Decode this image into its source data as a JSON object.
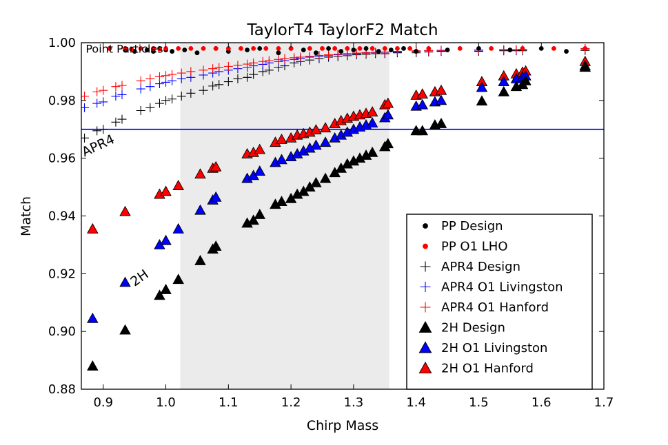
{
  "chart_data": {
    "type": "scatter",
    "title": "TaylorT4 TaylorF2 Match",
    "xlabel": "Chirp Mass",
    "ylabel": "Match",
    "xlim": [
      0.865,
      1.7
    ],
    "ylim": [
      0.88,
      1.0
    ],
    "xticks": [
      "0.9",
      "1.0",
      "1.1",
      "1.2",
      "1.3",
      "1.4",
      "1.5",
      "1.6",
      "1.7"
    ],
    "xtick_values": [
      0.9,
      1.0,
      1.1,
      1.2,
      1.3,
      1.4,
      1.5,
      1.6,
      1.7
    ],
    "yticks": [
      "0.88",
      "0.90",
      "0.92",
      "0.94",
      "0.96",
      "0.98",
      "1.00"
    ],
    "ytick_values": [
      0.88,
      0.9,
      0.92,
      0.94,
      0.96,
      0.98,
      1.0
    ],
    "shaded_region": {
      "x0": 1.023,
      "x1": 1.357,
      "color": "#ebebeb"
    },
    "threshold_line": {
      "y": 0.97,
      "color": "#0000ff"
    },
    "annotations": [
      {
        "text": "Point Particles",
        "x": 0.872,
        "y": 0.9965,
        "rotation": 0
      },
      {
        "text": "APR4",
        "x": 0.87,
        "y": 0.9605,
        "rotation": -25
      },
      {
        "text": "2H",
        "x": 0.95,
        "y": 0.9155,
        "rotation": -35
      }
    ],
    "legend": {
      "position": "lower-right",
      "entries": [
        {
          "label": "PP Design",
          "series": "pp_design"
        },
        {
          "label": "PP O1 LHO",
          "series": "pp_o1"
        },
        {
          "label": "APR4 Design",
          "series": "apr4_design"
        },
        {
          "label": "APR4 O1 Livingston",
          "series": "apr4_liv"
        },
        {
          "label": "APR4 O1 Hanford",
          "series": "apr4_han"
        },
        {
          "label": "2H Design",
          "series": "h2_design"
        },
        {
          "label": "2H O1 Livingston",
          "series": "h2_liv"
        },
        {
          "label": "2H O1 Hanford",
          "series": "h2_han"
        }
      ]
    },
    "series": [
      {
        "id": "pp_design",
        "name": "PP Design",
        "marker": "dot",
        "color": "#000000",
        "x": [
          0.91,
          0.935,
          0.95,
          0.97,
          0.98,
          0.99,
          1.0,
          1.01,
          1.03,
          1.05,
          1.08,
          1.1,
          1.13,
          1.15,
          1.18,
          1.2,
          1.22,
          1.24,
          1.26,
          1.28,
          1.3,
          1.32,
          1.34,
          1.36,
          1.38,
          1.4,
          1.45,
          1.5,
          1.55,
          1.6,
          1.64,
          1.67
        ],
        "y": [
          0.998,
          0.9975,
          0.997,
          0.9975,
          0.997,
          0.998,
          0.9975,
          0.997,
          0.9975,
          0.9965,
          0.998,
          0.997,
          0.9975,
          0.998,
          0.9965,
          0.998,
          0.9975,
          0.9965,
          0.998,
          0.997,
          0.9975,
          0.998,
          0.997,
          0.9975,
          0.998,
          0.997,
          0.9975,
          0.998,
          0.9975,
          0.998,
          0.997,
          0.991
        ]
      },
      {
        "id": "pp_o1",
        "name": "PP O1 LHO",
        "marker": "dot",
        "color": "#ff0000",
        "x": [
          0.91,
          0.935,
          0.945,
          0.96,
          0.98,
          0.99,
          1.0,
          1.02,
          1.04,
          1.06,
          1.08,
          1.1,
          1.12,
          1.14,
          1.16,
          1.18,
          1.2,
          1.23,
          1.25,
          1.27,
          1.29,
          1.31,
          1.33,
          1.35,
          1.37,
          1.39,
          1.42,
          1.47,
          1.52,
          1.57,
          1.62,
          1.67
        ],
        "y": [
          0.998,
          0.998,
          0.9978,
          0.998,
          0.998,
          0.9978,
          0.998,
          0.998,
          0.998,
          0.998,
          0.998,
          0.998,
          0.998,
          0.998,
          0.998,
          0.998,
          0.998,
          0.998,
          0.998,
          0.998,
          0.998,
          0.998,
          0.998,
          0.998,
          0.998,
          0.998,
          0.998,
          0.998,
          0.998,
          0.998,
          0.998,
          0.998
        ]
      },
      {
        "id": "apr4_design",
        "name": "APR4 Design",
        "marker": "plus",
        "color": "#000000",
        "x": [
          0.87,
          0.89,
          0.9,
          0.92,
          0.93,
          0.96,
          0.975,
          0.99,
          1.0,
          1.01,
          1.025,
          1.04,
          1.06,
          1.075,
          1.085,
          1.1,
          1.115,
          1.13,
          1.14,
          1.155,
          1.165,
          1.18,
          1.19,
          1.205,
          1.215,
          1.23,
          1.245,
          1.26,
          1.275,
          1.29,
          1.305,
          1.32,
          1.335,
          1.35,
          1.37,
          1.4,
          1.42,
          1.44,
          1.5,
          1.54,
          1.56,
          1.57,
          1.67
        ],
        "y": [
          0.967,
          0.9695,
          0.97,
          0.9725,
          0.9735,
          0.9765,
          0.9775,
          0.979,
          0.98,
          0.9805,
          0.9815,
          0.9825,
          0.9835,
          0.985,
          0.9855,
          0.9865,
          0.9875,
          0.988,
          0.989,
          0.99,
          0.9905,
          0.9915,
          0.992,
          0.993,
          0.9935,
          0.994,
          0.9945,
          0.995,
          0.9952,
          0.9955,
          0.9958,
          0.996,
          0.9962,
          0.9962,
          0.9965,
          0.9965,
          0.9968,
          0.997,
          0.997,
          0.9972,
          0.9972,
          0.9972,
          0.9973
        ]
      },
      {
        "id": "apr4_liv",
        "name": "APR4 O1 Livingston",
        "marker": "plus",
        "color": "#0000ff",
        "x": [
          0.87,
          0.89,
          0.9,
          0.92,
          0.93,
          0.96,
          0.975,
          0.99,
          1.0,
          1.01,
          1.025,
          1.04,
          1.06,
          1.075,
          1.085,
          1.1,
          1.115,
          1.13,
          1.14,
          1.155,
          1.165,
          1.18,
          1.19,
          1.205,
          1.215,
          1.23,
          1.245,
          1.26,
          1.275,
          1.29,
          1.305,
          1.32,
          1.335,
          1.35,
          1.37,
          1.4,
          1.42,
          1.44,
          1.5,
          1.54,
          1.56,
          1.57,
          1.67
        ],
        "y": [
          0.9775,
          0.979,
          0.9795,
          0.9815,
          0.982,
          0.984,
          0.9848,
          0.9858,
          0.9863,
          0.9868,
          0.9875,
          0.988,
          0.9888,
          0.9895,
          0.99,
          0.9905,
          0.991,
          0.9915,
          0.992,
          0.9925,
          0.993,
          0.9935,
          0.9938,
          0.9942,
          0.9945,
          0.995,
          0.9952,
          0.9955,
          0.9958,
          0.996,
          0.9962,
          0.9964,
          0.9966,
          0.9967,
          0.9968,
          0.997,
          0.9972,
          0.9973,
          0.9974,
          0.9975,
          0.9975,
          0.9976,
          0.9978
        ]
      },
      {
        "id": "apr4_han",
        "name": "APR4 O1 Hanford",
        "marker": "plus",
        "color": "#ff0000",
        "x": [
          0.87,
          0.89,
          0.9,
          0.92,
          0.93,
          0.96,
          0.975,
          0.99,
          1.0,
          1.01,
          1.025,
          1.04,
          1.06,
          1.075,
          1.085,
          1.1,
          1.115,
          1.13,
          1.14,
          1.155,
          1.165,
          1.18,
          1.19,
          1.205,
          1.215,
          1.23,
          1.245,
          1.26,
          1.275,
          1.29,
          1.305,
          1.32,
          1.335,
          1.35,
          1.37,
          1.4,
          1.42,
          1.44,
          1.5,
          1.54,
          1.56,
          1.57,
          1.67
        ],
        "y": [
          0.9815,
          0.983,
          0.9835,
          0.9848,
          0.9852,
          0.9868,
          0.9875,
          0.9882,
          0.9886,
          0.989,
          0.9895,
          0.99,
          0.9905,
          0.991,
          0.9914,
          0.9918,
          0.9922,
          0.9926,
          0.993,
          0.9935,
          0.9938,
          0.9942,
          0.9945,
          0.9948,
          0.995,
          0.9953,
          0.9956,
          0.9958,
          0.996,
          0.9962,
          0.9964,
          0.9966,
          0.9967,
          0.9968,
          0.997,
          0.9972,
          0.9973,
          0.9974,
          0.9975,
          0.9976,
          0.9976,
          0.9977,
          0.998
        ]
      },
      {
        "id": "h2_design",
        "name": "2H Design",
        "marker": "triangle",
        "color": "#000000",
        "x": [
          0.883,
          0.935,
          0.99,
          1.0,
          1.02,
          1.055,
          1.075,
          1.08,
          1.13,
          1.14,
          1.15,
          1.175,
          1.185,
          1.2,
          1.21,
          1.22,
          1.23,
          1.24,
          1.255,
          1.27,
          1.28,
          1.29,
          1.3,
          1.31,
          1.32,
          1.33,
          1.35,
          1.355,
          1.4,
          1.41,
          1.43,
          1.44,
          1.505,
          1.54,
          1.56,
          1.57,
          1.575,
          1.67
        ],
        "y": [
          0.888,
          0.9005,
          0.9125,
          0.9145,
          0.918,
          0.9245,
          0.9285,
          0.9295,
          0.9375,
          0.9385,
          0.9405,
          0.944,
          0.945,
          0.946,
          0.9475,
          0.9485,
          0.95,
          0.9515,
          0.953,
          0.955,
          0.9565,
          0.958,
          0.959,
          0.96,
          0.961,
          0.962,
          0.964,
          0.965,
          0.9695,
          0.9695,
          0.9715,
          0.972,
          0.9798,
          0.983,
          0.9848,
          0.9855,
          0.9868,
          0.9915
        ]
      },
      {
        "id": "h2_liv",
        "name": "2H O1 Livingston",
        "marker": "triangle",
        "color": "#0000ff",
        "x": [
          0.883,
          0.935,
          0.99,
          1.0,
          1.02,
          1.055,
          1.075,
          1.08,
          1.13,
          1.14,
          1.15,
          1.175,
          1.185,
          1.2,
          1.21,
          1.22,
          1.23,
          1.24,
          1.255,
          1.27,
          1.28,
          1.29,
          1.3,
          1.31,
          1.32,
          1.33,
          1.35,
          1.355,
          1.4,
          1.41,
          1.43,
          1.44,
          1.505,
          1.54,
          1.56,
          1.57,
          1.575,
          1.67
        ],
        "y": [
          0.9045,
          0.917,
          0.93,
          0.9315,
          0.9355,
          0.942,
          0.9455,
          0.9465,
          0.953,
          0.954,
          0.9555,
          0.9585,
          0.9595,
          0.9605,
          0.9615,
          0.9625,
          0.9635,
          0.9645,
          0.9655,
          0.967,
          0.968,
          0.969,
          0.97,
          0.9708,
          0.9715,
          0.9722,
          0.974,
          0.975,
          0.978,
          0.9785,
          0.9795,
          0.98,
          0.9845,
          0.9865,
          0.9875,
          0.988,
          0.9885,
          0.992
        ]
      },
      {
        "id": "h2_han",
        "name": "2H O1 Hanford",
        "marker": "triangle",
        "color": "#ff0000",
        "x": [
          0.883,
          0.935,
          0.99,
          1.0,
          1.02,
          1.055,
          1.075,
          1.08,
          1.13,
          1.14,
          1.15,
          1.175,
          1.185,
          1.2,
          1.21,
          1.22,
          1.23,
          1.24,
          1.255,
          1.27,
          1.28,
          1.29,
          1.3,
          1.31,
          1.32,
          1.33,
          1.35,
          1.355,
          1.4,
          1.41,
          1.43,
          1.44,
          1.505,
          1.54,
          1.56,
          1.57,
          1.575,
          1.67
        ],
        "y": [
          0.9355,
          0.9415,
          0.9475,
          0.9485,
          0.9505,
          0.9545,
          0.9565,
          0.957,
          0.9615,
          0.962,
          0.963,
          0.9655,
          0.9665,
          0.967,
          0.968,
          0.9685,
          0.969,
          0.9698,
          0.9705,
          0.972,
          0.973,
          0.9738,
          0.9745,
          0.975,
          0.9755,
          0.976,
          0.9785,
          0.979,
          0.9818,
          0.9822,
          0.983,
          0.9835,
          0.9865,
          0.9885,
          0.9892,
          0.9898,
          0.9902,
          0.9935
        ]
      }
    ]
  }
}
